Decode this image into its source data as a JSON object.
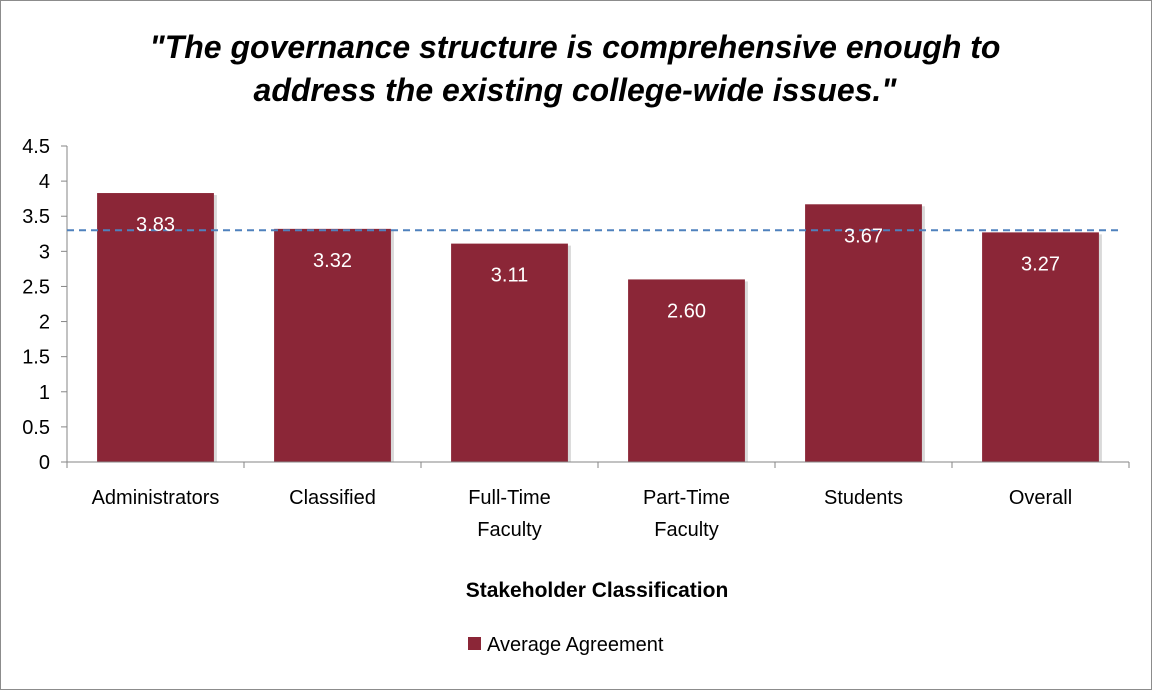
{
  "chart_data": {
    "type": "bar",
    "title_lines": [
      "\"The governance structure is comprehensive enough to",
      "address the existing college-wide issues.\""
    ],
    "categories": [
      [
        "Administrators"
      ],
      [
        "Classified"
      ],
      [
        "Full-Time",
        "Faculty"
      ],
      [
        "Part-Time",
        "Faculty"
      ],
      [
        "Students"
      ],
      [
        "Overall"
      ]
    ],
    "series": [
      {
        "name": "Average Agreement",
        "values": [
          3.83,
          3.32,
          3.11,
          2.6,
          3.67,
          3.27
        ],
        "labels": [
          "3.83",
          "3.32",
          "3.11",
          "2.60",
          "3.67",
          "3.27"
        ],
        "color": "#8B2637"
      }
    ],
    "reference_line": {
      "value": 3.3,
      "color": "#4F81BD",
      "style": "dashed"
    },
    "ylim": [
      0,
      4.5
    ],
    "yticks": [
      "0",
      "0.5",
      "1",
      "1.5",
      "2",
      "2.5",
      "3",
      "3.5",
      "4",
      "4.5"
    ],
    "xlabel": "Stakeholder Classification",
    "ylabel": "",
    "legend_position": "bottom",
    "grid": false
  }
}
